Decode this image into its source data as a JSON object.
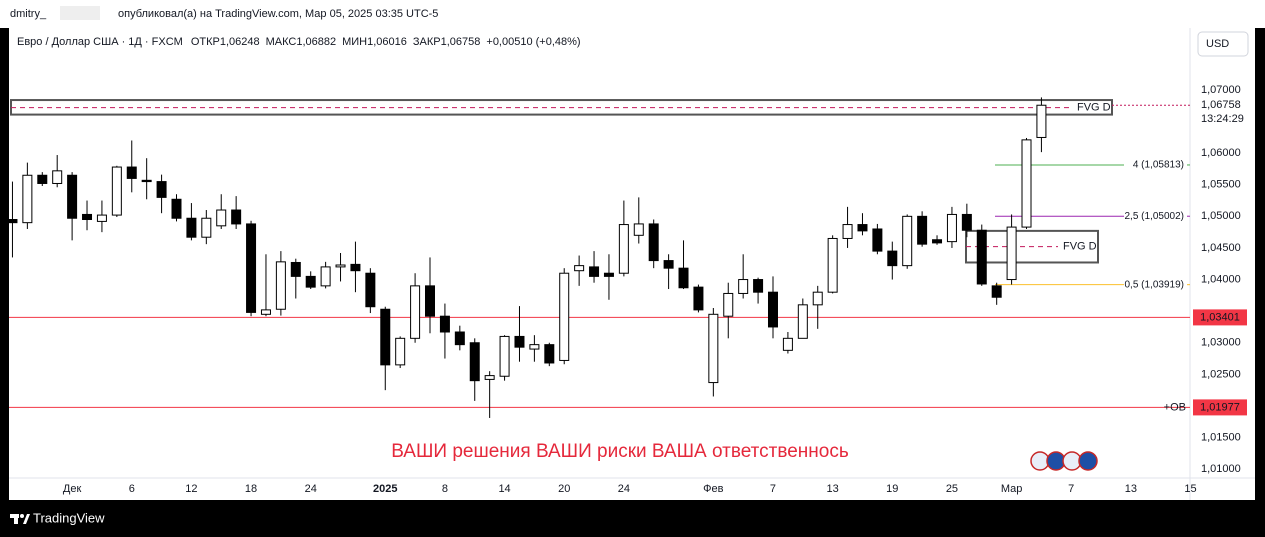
{
  "header": {
    "author": "dmitry_",
    "published": "опубликовал(а) на TradingView.com, Мар 05, 2025 03:35 UTC-5"
  },
  "chart_data": {
    "type": "candlestick",
    "symbol": "Евро / Доллар США · 1Д · FXCM",
    "legend_fields": [
      {
        "label": "ОТКР",
        "value": "1,06248"
      },
      {
        "label": "МАКС",
        "value": "1,06882"
      },
      {
        "label": "МИН",
        "value": "1,06016"
      },
      {
        "label": "ЗАКР",
        "value": "1,06758"
      }
    ],
    "change": "+0,00510 (+0,48%)",
    "currency": "USD",
    "categories": [
      null,
      null,
      null,
      null,
      "Дек",
      null,
      null,
      null,
      "6",
      null,
      null,
      null,
      "12",
      null,
      null,
      null,
      "18",
      null,
      null,
      null,
      "24",
      null,
      null,
      null,
      null,
      "2025",
      null,
      null,
      null,
      "8",
      null,
      null,
      null,
      "14",
      null,
      null,
      null,
      "20",
      null,
      null,
      null,
      "24",
      null,
      null,
      null,
      null,
      null,
      "Фев",
      null,
      null,
      null,
      "7",
      null,
      null,
      null,
      "13",
      null,
      null,
      null,
      "19",
      null,
      null,
      null,
      "25",
      null,
      null,
      null,
      "Мар",
      null,
      null,
      null,
      "7",
      null,
      null,
      null,
      "13",
      null,
      null,
      null,
      "15"
    ],
    "open": [
      1.0495,
      1.049,
      1.0565,
      1.0552,
      1.0565,
      1.0503,
      1.0492,
      1.0502,
      1.0578,
      1.0557,
      1.0555,
      1.0527,
      1.0497,
      1.0467,
      1.0485,
      1.051,
      1.0488,
      1.0345,
      1.0353,
      1.0427,
      1.0405,
      1.039,
      1.042,
      1.0424,
      1.041,
      1.0353,
      1.0265,
      1.0307,
      1.039,
      1.0342,
      1.0317,
      1.03,
      1.0242,
      1.0247,
      1.031,
      1.029,
      1.0297,
      1.0272,
      1.0414,
      1.042,
      1.041,
      1.041,
      1.047,
      1.0488,
      1.043,
      1.0418,
      1.0388,
      1.0237,
      1.0342,
      1.0378,
      1.04,
      1.038,
      1.0288,
      1.0307,
      1.036,
      1.038,
      1.0465,
      1.0487,
      1.048,
      1.0445,
      1.0422,
      1.05,
      1.0463,
      1.046,
      1.0503,
      1.0478,
      1.039,
      1.04,
      1.0483,
      1.06248,
      null,
      null,
      null,
      null,
      null,
      null,
      null,
      null,
      null,
      null
    ],
    "high": [
      1.0555,
      1.0585,
      1.057,
      1.0597,
      1.057,
      1.0525,
      1.0525,
      1.058,
      1.062,
      1.0592,
      1.0566,
      1.0535,
      1.0521,
      1.051,
      1.0535,
      1.0532,
      1.0493,
      1.044,
      1.0445,
      1.0433,
      1.0413,
      1.0428,
      1.0442,
      1.046,
      1.0418,
      1.0357,
      1.031,
      1.041,
      1.0435,
      1.0362,
      1.0327,
      1.0307,
      1.0255,
      1.0312,
      1.0358,
      1.0312,
      1.03,
      1.0418,
      1.0438,
      1.0445,
      1.044,
      1.0525,
      1.053,
      1.0495,
      1.044,
      1.0462,
      1.0392,
      1.0355,
      1.0395,
      1.044,
      1.0403,
      1.0405,
      1.0317,
      1.037,
      1.039,
      1.047,
      1.0515,
      1.0505,
      1.0488,
      1.046,
      1.0503,
      1.0508,
      1.047,
      1.0515,
      1.052,
      1.0487,
      1.0395,
      1.0503,
      1.0624,
      1.06882,
      null,
      null,
      null,
      null,
      null,
      null,
      null,
      null,
      null,
      null
    ],
    "low": [
      1.0435,
      1.048,
      1.0548,
      1.0546,
      1.0462,
      1.0478,
      1.0475,
      1.0499,
      1.0538,
      1.0527,
      1.0505,
      1.0492,
      1.0462,
      1.0456,
      1.048,
      1.048,
      1.0342,
      1.0342,
      1.0343,
      1.037,
      1.0385,
      1.0386,
      1.0397,
      1.038,
      1.0347,
      1.0225,
      1.026,
      1.03,
      1.0315,
      1.0275,
      1.0288,
      1.0208,
      1.0181,
      1.024,
      1.027,
      1.027,
      1.0263,
      1.0266,
      1.039,
      1.0395,
      1.0368,
      1.0405,
      1.0457,
      1.0418,
      1.0385,
      1.0385,
      1.0348,
      1.0215,
      1.0307,
      1.037,
      1.0362,
      1.0307,
      1.0283,
      1.0307,
      1.0322,
      1.0378,
      1.045,
      1.047,
      1.044,
      1.04,
      1.0417,
      1.0452,
      1.0455,
      1.045,
      1.0467,
      1.039,
      1.036,
      1.0392,
      1.048,
      1.06016,
      null,
      null,
      null,
      null,
      null,
      null,
      null,
      null,
      null,
      null
    ],
    "close": [
      1.049,
      1.0565,
      1.0552,
      1.0572,
      1.0497,
      1.0495,
      1.0502,
      1.0578,
      1.056,
      1.0555,
      1.053,
      1.0497,
      1.0467,
      1.0497,
      1.051,
      1.0488,
      1.0348,
      1.0352,
      1.0428,
      1.0405,
      1.0388,
      1.042,
      1.0423,
      1.0414,
      1.0357,
      1.0265,
      1.0307,
      1.039,
      1.0342,
      1.0317,
      1.0297,
      1.024,
      1.0248,
      1.031,
      1.0293,
      1.0297,
      1.0268,
      1.041,
      1.0422,
      1.0405,
      1.0405,
      1.0487,
      1.0488,
      1.043,
      1.0418,
      1.0387,
      1.0352,
      1.0345,
      1.0378,
      1.04,
      1.038,
      1.0325,
      1.0307,
      1.036,
      1.038,
      1.0465,
      1.0487,
      1.0477,
      1.0445,
      1.0422,
      1.05,
      1.0456,
      1.0458,
      1.0503,
      1.0478,
      1.0393,
      1.0372,
      1.0483,
      1.0621,
      1.06758,
      null,
      null,
      null,
      null,
      null,
      null,
      null,
      null,
      null,
      null
    ],
    "up_color": "#ffffff",
    "down_color": "#000000",
    "border_color": "#000000",
    "ylim": [
      1.0086,
      1.0798
    ],
    "yticks": [
      {
        "value": 1.01,
        "label": "1,01000"
      },
      {
        "value": 1.015,
        "label": "1,01500"
      },
      {
        "value": 1.025,
        "label": "1,02500"
      },
      {
        "value": 1.03,
        "label": "1,03000"
      },
      {
        "value": 1.04,
        "label": "1,04000"
      },
      {
        "value": 1.045,
        "label": "1,04500"
      },
      {
        "value": 1.05,
        "label": "1,05000"
      },
      {
        "value": 1.055,
        "label": "1,05500"
      },
      {
        "value": 1.06,
        "label": "1,06000"
      },
      {
        "value": 1.07,
        "label": "1,07000"
      }
    ],
    "grid": false,
    "current_price": {
      "value": 1.06758,
      "label": "1,06758"
    },
    "countdown": "13:24:29",
    "levels": [
      {
        "value": 1.03401,
        "label": "1,03401",
        "color": "#f23645"
      },
      {
        "value": 1.01977,
        "label": "1,01977",
        "text": "+OB",
        "color": "#f23645"
      }
    ],
    "zones": [
      {
        "top": 1.0684,
        "bottom": 1.0661,
        "mid": 1.0672,
        "label": "FVG D"
      },
      {
        "top": 1.0477,
        "bottom": 1.0427,
        "mid": 1.0452,
        "label": "FVG D"
      }
    ],
    "fib_lines": [
      {
        "value": 1.05813,
        "label": "4 (1,05813)",
        "color": "#4caf50"
      },
      {
        "value": 1.05002,
        "label": "2,5 (1,05002)",
        "color": "#9c27b0"
      },
      {
        "value": 1.03919,
        "label": "0,5 (1,03919)",
        "color": "#fbc02d"
      }
    ],
    "watermark": "ВАШИ решения ВАШИ риски ВАША ответственнось"
  },
  "footer": {
    "brand": "TradingView"
  }
}
